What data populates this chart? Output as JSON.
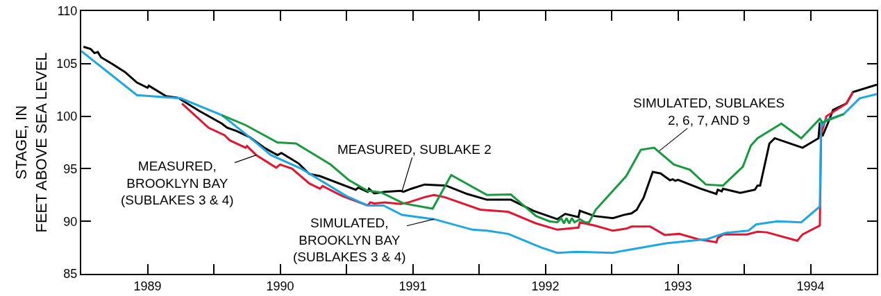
{
  "chart_data": {
    "type": "line",
    "ylabel": "STAGE, IN\nFEET ABOVE SEA LEVEL",
    "xlim": [
      1989,
      1995
    ],
    "xticks": [
      {
        "value": 1989.5,
        "label": "1989"
      },
      {
        "value": 1990,
        "label": null
      },
      {
        "value": 1990.5,
        "label": "1990"
      },
      {
        "value": 1991,
        "label": null
      },
      {
        "value": 1991.5,
        "label": "1991"
      },
      {
        "value": 1992,
        "label": null
      },
      {
        "value": 1992.5,
        "label": "1992"
      },
      {
        "value": 1993,
        "label": null
      },
      {
        "value": 1993.5,
        "label": "1993"
      },
      {
        "value": 1994,
        "label": null
      },
      {
        "value": 1994.5,
        "label": "1994"
      }
    ],
    "ylim": [
      85,
      110
    ],
    "yticks": [
      85,
      90,
      95,
      100,
      105,
      110
    ],
    "marker": "none",
    "line_style": "solid",
    "series": [
      {
        "color": "#000000",
        "x": [
          1989.017,
          1989.07,
          1989.1,
          1989.125,
          1989.15,
          1989.23,
          1989.33,
          1989.42,
          1989.5,
          1989.51,
          1989.64,
          1989.73,
          1989.89,
          1990.06,
          1990.1,
          1990.17,
          1990.27,
          1990.38,
          1990.45,
          1990.48,
          1990.51,
          1990.64,
          1990.72,
          1990.8,
          1991.07,
          1991.09,
          1991.16,
          1991.17,
          1991.21,
          1991.29,
          1991.41,
          1991.43,
          1991.49,
          1991.59,
          1991.75,
          1991.91,
          1992.06,
          1992.24,
          1992.41,
          1992.59,
          1992.65,
          1992.75,
          1992.76,
          1992.87,
          1993.01,
          1993.09,
          1993.15,
          1993.19,
          1993.22,
          1993.24,
          1993.31,
          1993.37,
          1993.44,
          1993.46,
          1993.48,
          1993.5,
          1993.67,
          1993.79,
          1993.8,
          1993.83,
          1993.84,
          1993.97,
          1994.08,
          1994.1,
          1994.12,
          1994.19,
          1994.23,
          1994.44,
          1994.56,
          1994.57,
          1994.59,
          1994.63,
          1994.67,
          1994.77,
          1994.82,
          1995.0
        ],
        "values": [
          106.6,
          106.4,
          106.0,
          106.1,
          105.6,
          105.0,
          104.2,
          103.2,
          102.7,
          102.9,
          101.9,
          101.75,
          100.5,
          99.3,
          98.9,
          98.6,
          98.0,
          97.0,
          96.5,
          96.3,
          96.5,
          95.5,
          94.5,
          94.3,
          93.0,
          93.2,
          92.8,
          93.1,
          92.65,
          92.8,
          92.9,
          92.8,
          93.1,
          93.5,
          93.4,
          92.6,
          92.05,
          92.05,
          91.0,
          90.2,
          90.7,
          90.4,
          91.0,
          90.5,
          90.3,
          90.6,
          90.75,
          91.1,
          91.8,
          92.2,
          94.7,
          94.55,
          93.9,
          94.0,
          93.85,
          93.95,
          93.1,
          92.6,
          93.0,
          92.85,
          93.1,
          92.7,
          93.0,
          93.4,
          93.4,
          97.4,
          97.9,
          97.0,
          97.9,
          99.4,
          98.1,
          99.3,
          100.6,
          101.2,
          102.3,
          103.0
        ]
      },
      {
        "color": "#e3142e",
        "x": [
          1989.76,
          1989.96,
          1990.08,
          1990.12,
          1990.24,
          1990.25,
          1990.32,
          1990.47,
          1990.5,
          1990.59,
          1990.72,
          1990.8,
          1990.82,
          1990.97,
          1991.16,
          1991.18,
          1991.21,
          1991.29,
          1991.41,
          1991.47,
          1991.59,
          1991.66,
          1991.74,
          1992.01,
          1992.22,
          1992.43,
          1992.59,
          1992.75,
          1992.76,
          1992.87,
          1993.01,
          1993.11,
          1993.15,
          1993.29,
          1993.4,
          1993.51,
          1993.65,
          1993.79,
          1993.8,
          1993.84,
          1994.02,
          1994.1,
          1994.17,
          1994.4,
          1994.44,
          1994.57,
          1994.58,
          1994.62,
          1994.77,
          1994.82
        ],
        "values": [
          101.2,
          98.9,
          98.2,
          97.7,
          97.0,
          97.15,
          96.3,
          95.1,
          95.4,
          95.0,
          93.6,
          93.1,
          93.35,
          92.4,
          91.5,
          91.8,
          91.7,
          91.8,
          91.65,
          91.8,
          92.3,
          92.5,
          92.3,
          91.1,
          90.9,
          89.8,
          89.2,
          89.4,
          89.9,
          89.6,
          89.1,
          89.3,
          89.5,
          89.5,
          88.7,
          88.8,
          88.3,
          88.0,
          88.4,
          88.75,
          88.75,
          89.0,
          88.95,
          88.15,
          88.75,
          89.6,
          98.3,
          100.0,
          101.2,
          102.3
        ]
      },
      {
        "color": "#1aa7e2",
        "x": [
          1989.0,
          1989.42,
          1989.75,
          1990.06,
          1990.25,
          1990.43,
          1990.66,
          1991.0,
          1991.16,
          1991.28,
          1991.42,
          1991.66,
          1991.95,
          1992.06,
          1992.22,
          1992.47,
          1992.59,
          1992.74,
          1993.01,
          1993.09,
          1993.41,
          1993.72,
          1993.86,
          1994.03,
          1994.09,
          1994.25,
          1994.43,
          1994.57,
          1994.58,
          1994.59,
          1994.61,
          1994.75,
          1994.87,
          1995.0
        ],
        "values": [
          106.2,
          102.0,
          101.7,
          100.1,
          98.2,
          96.3,
          95.0,
          92.4,
          91.5,
          91.5,
          90.6,
          90.2,
          89.2,
          89.1,
          88.8,
          87.5,
          87.0,
          87.1,
          87.0,
          87.2,
          87.9,
          88.3,
          88.9,
          89.1,
          89.7,
          90.0,
          89.9,
          91.4,
          99.5,
          99.1,
          99.6,
          100.2,
          101.7,
          102.1
        ]
      },
      {
        "color": "#169a3e",
        "x": [
          1990.06,
          1990.24,
          1990.48,
          1990.62,
          1990.88,
          1991.02,
          1991.16,
          1991.26,
          1991.43,
          1991.65,
          1991.79,
          1992.06,
          1992.24,
          1992.43,
          1992.53,
          1992.59,
          1992.62,
          1992.64,
          1992.66,
          1992.68,
          1992.7,
          1992.72,
          1992.76,
          1992.8,
          1992.83,
          1992.88,
          1993.11,
          1993.22,
          1993.32,
          1993.47,
          1993.59,
          1993.71,
          1993.84,
          1993.99,
          1994.05,
          1994.1,
          1994.28,
          1994.43,
          1994.57,
          1994.59,
          1994.75
        ],
        "values": [
          100.1,
          99.15,
          97.5,
          97.4,
          95.4,
          93.9,
          92.9,
          92.75,
          91.7,
          91.2,
          94.4,
          92.5,
          92.55,
          90.5,
          90.0,
          89.9,
          90.3,
          89.8,
          90.3,
          89.8,
          90.3,
          89.9,
          90.2,
          89.9,
          89.9,
          91.1,
          94.3,
          96.8,
          97.0,
          95.4,
          94.9,
          93.5,
          93.4,
          95.2,
          97.2,
          97.9,
          99.3,
          97.9,
          99.75,
          99.4,
          100.2
        ]
      }
    ],
    "annotations": [
      {
        "text": "MEASURED,\nBROOKLYN BAY\n(SUBLAKES 3 & 4)",
        "x": 1990.32,
        "y": 96.3
      },
      {
        "text": "MEASURED, SUBLAKE 2",
        "x": 1991.42,
        "y": 92.9
      },
      {
        "text": "SIMULATED,\nBROOKLYN BAY\n(SUBLAKES 3 & 4)",
        "x": 1991.66,
        "y": 90.2
      },
      {
        "text": "SIMULATED, SUBLAKES\n2, 6, 7, AND 9",
        "x": 1993.36,
        "y": 96.7
      }
    ]
  }
}
